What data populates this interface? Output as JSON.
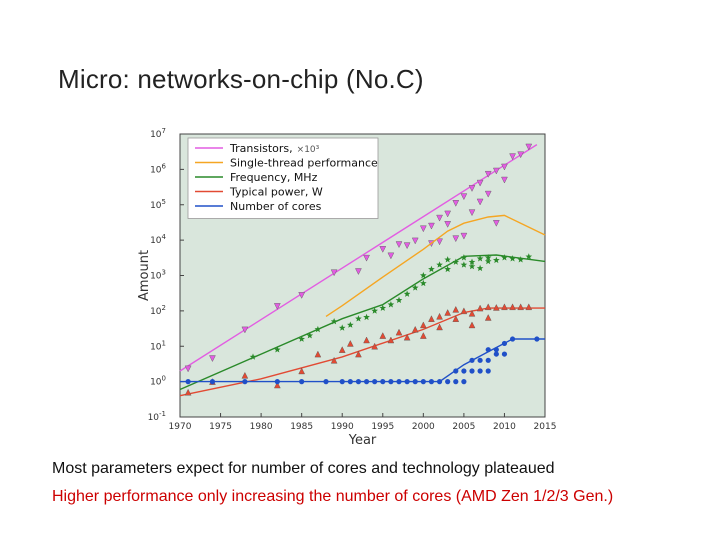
{
  "slide": {
    "title": "Micro: networks-on-chip (No.C)",
    "caption_1": "Most parameters expect for number of cores and technology plateaued",
    "caption_2": "Higher performance only increasing the number of cores (AMD Zen 1/2/3 Gen.)"
  },
  "chart_data": {
    "type": "scatter",
    "xlabel": "Year",
    "ylabel": "Amount",
    "xlim": [
      1970,
      2015
    ],
    "ylim": [
      0.1,
      10000000
    ],
    "yscale": "log",
    "xticks": [
      1970,
      1975,
      1980,
      1985,
      1990,
      1995,
      2000,
      2005,
      2010,
      2015
    ],
    "yticks": [
      {
        "value": 0.1,
        "base": "10",
        "exp": "-1"
      },
      {
        "value": 1,
        "base": "10",
        "exp": "0"
      },
      {
        "value": 10,
        "base": "10",
        "exp": "1"
      },
      {
        "value": 100,
        "base": "10",
        "exp": "2"
      },
      {
        "value": 1000,
        "base": "10",
        "exp": "3"
      },
      {
        "value": 10000,
        "base": "10",
        "exp": "4"
      },
      {
        "value": 100000,
        "base": "10",
        "exp": "5"
      },
      {
        "value": 1000000,
        "base": "10",
        "exp": "6"
      },
      {
        "value": 10000000,
        "base": "10",
        "exp": "7"
      }
    ],
    "grid": false,
    "background": "#d9e6dc",
    "legend_position": "top-left",
    "series": [
      {
        "name": "Transistors,",
        "name_suffix": "×10³",
        "color": "#e25de2",
        "marker": "triangle-down",
        "trend": [
          [
            1970,
            2
          ],
          [
            2014,
            5000000
          ]
        ],
        "points": [
          [
            1971,
            2.3
          ],
          [
            1974,
            4.5
          ],
          [
            1978,
            29
          ],
          [
            1982,
            134
          ],
          [
            1985,
            275
          ],
          [
            1989,
            1200
          ],
          [
            1993,
            3100
          ],
          [
            1995,
            5500
          ],
          [
            1997,
            7500
          ],
          [
            1999,
            9500
          ],
          [
            2000,
            21000
          ],
          [
            2001,
            25000
          ],
          [
            2002,
            42000
          ],
          [
            2003,
            55000
          ],
          [
            2004,
            110000
          ],
          [
            2005,
            170000
          ],
          [
            2006,
            290000
          ],
          [
            2007,
            410000
          ],
          [
            2008,
            730000
          ],
          [
            2009,
            900000
          ],
          [
            2010,
            1170000
          ],
          [
            2011,
            2300000
          ],
          [
            2012,
            2600000
          ],
          [
            2013,
            4300000
          ],
          [
            1992,
            1300
          ],
          [
            1996,
            3600
          ],
          [
            1998,
            7000
          ],
          [
            2002,
            9000
          ],
          [
            2004,
            11000
          ],
          [
            2006,
            60000
          ],
          [
            2007,
            120000
          ],
          [
            2008,
            200000
          ],
          [
            2010,
            500000
          ],
          [
            2009,
            30000
          ],
          [
            2003,
            28000
          ],
          [
            2005,
            13000
          ],
          [
            2001,
            8000
          ]
        ]
      },
      {
        "name": "Single-thread performance",
        "color": "#f5a623",
        "marker": "none",
        "trend": [
          [
            1988,
            70
          ],
          [
            1990,
            140
          ],
          [
            1995,
            900
          ],
          [
            2000,
            5500
          ],
          [
            2003,
            18000
          ],
          [
            2005,
            30000
          ],
          [
            2008,
            45000
          ],
          [
            2010,
            50000
          ],
          [
            2012,
            30000
          ],
          [
            2015,
            14000
          ]
        ],
        "points": []
      },
      {
        "name": "Frequency, MHz",
        "color": "#2a8a2a",
        "marker": "star",
        "trend": [
          [
            1970,
            0.6
          ],
          [
            1980,
            6
          ],
          [
            1990,
            60
          ],
          [
            1995,
            150
          ],
          [
            2000,
            800
          ],
          [
            2005,
            3500
          ],
          [
            2009,
            3800
          ],
          [
            2015,
            2500
          ]
        ],
        "points": [
          [
            1979,
            5
          ],
          [
            1982,
            8
          ],
          [
            1985,
            16
          ],
          [
            1986,
            20
          ],
          [
            1987,
            30
          ],
          [
            1989,
            50
          ],
          [
            1990,
            33
          ],
          [
            1991,
            40
          ],
          [
            1992,
            60
          ],
          [
            1993,
            66
          ],
          [
            1994,
            100
          ],
          [
            1995,
            120
          ],
          [
            1996,
            150
          ],
          [
            1997,
            200
          ],
          [
            1998,
            300
          ],
          [
            1999,
            450
          ],
          [
            2000,
            1000
          ],
          [
            2001,
            1500
          ],
          [
            2002,
            2000
          ],
          [
            2003,
            2800
          ],
          [
            2004,
            2400
          ],
          [
            2005,
            2000
          ],
          [
            2006,
            1800
          ],
          [
            2007,
            3000
          ],
          [
            2008,
            2500
          ],
          [
            2009,
            2700
          ],
          [
            2010,
            3200
          ],
          [
            2011,
            3000
          ],
          [
            2012,
            2800
          ],
          [
            2013,
            3400
          ],
          [
            2000,
            600
          ],
          [
            2003,
            1500
          ],
          [
            2006,
            2400
          ],
          [
            2007,
            1600
          ],
          [
            2008,
            3200
          ],
          [
            2005,
            3200
          ]
        ]
      },
      {
        "name": "Typical power, W",
        "color": "#e24a33",
        "marker": "triangle-up",
        "trend": [
          [
            1970,
            0.4
          ],
          [
            1980,
            1.2
          ],
          [
            1990,
            5
          ],
          [
            2000,
            30
          ],
          [
            2005,
            90
          ],
          [
            2008,
            120
          ],
          [
            2015,
            120
          ]
        ],
        "points": [
          [
            1971,
            0.5
          ],
          [
            1974,
            1
          ],
          [
            1978,
            1.5
          ],
          [
            1982,
            0.8
          ],
          [
            1985,
            2
          ],
          [
            1987,
            6
          ],
          [
            1989,
            4
          ],
          [
            1990,
            8
          ],
          [
            1991,
            12
          ],
          [
            1992,
            6
          ],
          [
            1993,
            15
          ],
          [
            1994,
            10
          ],
          [
            1995,
            20
          ],
          [
            1996,
            15
          ],
          [
            1997,
            25
          ],
          [
            1998,
            18
          ],
          [
            1999,
            30
          ],
          [
            2000,
            40
          ],
          [
            2001,
            60
          ],
          [
            2002,
            70
          ],
          [
            2003,
            90
          ],
          [
            2004,
            110
          ],
          [
            2005,
            100
          ],
          [
            2006,
            85
          ],
          [
            2007,
            120
          ],
          [
            2008,
            130
          ],
          [
            2009,
            125
          ],
          [
            2010,
            130
          ],
          [
            2011,
            130
          ],
          [
            2012,
            130
          ],
          [
            2013,
            130
          ],
          [
            2000,
            20
          ],
          [
            2002,
            35
          ],
          [
            2004,
            60
          ],
          [
            2006,
            40
          ],
          [
            2008,
            65
          ]
        ]
      },
      {
        "name": "Number of cores",
        "color": "#2050c8",
        "marker": "circle",
        "trend": [
          [
            1970,
            1
          ],
          [
            2002,
            1
          ],
          [
            2005,
            3
          ],
          [
            2008,
            7
          ],
          [
            2011,
            16
          ],
          [
            2015,
            16
          ]
        ],
        "points": [
          [
            1971,
            1
          ],
          [
            1974,
            1
          ],
          [
            1978,
            1
          ],
          [
            1982,
            1
          ],
          [
            1985,
            1
          ],
          [
            1988,
            1
          ],
          [
            1990,
            1
          ],
          [
            1991,
            1
          ],
          [
            1992,
            1
          ],
          [
            1993,
            1
          ],
          [
            1994,
            1
          ],
          [
            1995,
            1
          ],
          [
            1996,
            1
          ],
          [
            1997,
            1
          ],
          [
            1998,
            1
          ],
          [
            1999,
            1
          ],
          [
            2000,
            1
          ],
          [
            2001,
            1
          ],
          [
            2002,
            1
          ],
          [
            2003,
            1
          ],
          [
            2004,
            1
          ],
          [
            2005,
            1
          ],
          [
            2004,
            2
          ],
          [
            2005,
            2
          ],
          [
            2006,
            2
          ],
          [
            2007,
            2
          ],
          [
            2008,
            2
          ],
          [
            2006,
            4
          ],
          [
            2007,
            4
          ],
          [
            2008,
            4
          ],
          [
            2008,
            8
          ],
          [
            2009,
            8
          ],
          [
            2010,
            12
          ],
          [
            2011,
            16
          ],
          [
            2014,
            16
          ],
          [
            2009,
            6
          ],
          [
            2010,
            6
          ]
        ]
      }
    ]
  }
}
